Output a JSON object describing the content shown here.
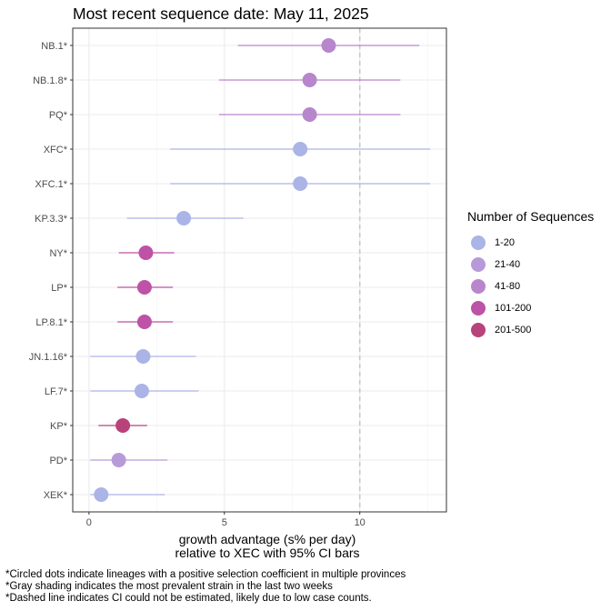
{
  "chart_data": {
    "type": "scatter",
    "title": "Most recent sequence date: May 11, 2025",
    "xlabel_line1": "growth advantage (s% per day)",
    "xlabel_line2": "relative to  XEC  with 95% CI bars",
    "xlim": [
      -0.6,
      13.2
    ],
    "xticks": [
      0,
      5,
      10
    ],
    "reference_line_x": 10,
    "grid": true,
    "legend": {
      "title": "Number of Sequences",
      "position": "right",
      "items": [
        {
          "label": "1-20",
          "color": "#aab4e6"
        },
        {
          "label": "21-40",
          "color": "#b79bd9"
        },
        {
          "label": "41-80",
          "color": "#b786cc"
        },
        {
          "label": "101-200",
          "color": "#bd52a6"
        },
        {
          "label": "201-500",
          "color": "#b8427a"
        }
      ]
    },
    "points": [
      {
        "lineage": "NB.1*",
        "value": 8.85,
        "ci_low": 5.5,
        "ci_high": 12.2,
        "group": "41-80"
      },
      {
        "lineage": "NB.1.8*",
        "value": 8.15,
        "ci_low": 4.8,
        "ci_high": 11.5,
        "group": "41-80"
      },
      {
        "lineage": "PQ*",
        "value": 8.15,
        "ci_low": 4.8,
        "ci_high": 11.5,
        "group": "41-80"
      },
      {
        "lineage": "XFC*",
        "value": 7.8,
        "ci_low": 3.0,
        "ci_high": 12.6,
        "group": "1-20"
      },
      {
        "lineage": "XFC.1*",
        "value": 7.8,
        "ci_low": 3.0,
        "ci_high": 12.6,
        "group": "1-20"
      },
      {
        "lineage": "KP.3.3*",
        "value": 3.5,
        "ci_low": 1.4,
        "ci_high": 5.7,
        "group": "1-20"
      },
      {
        "lineage": "NY*",
        "value": 2.1,
        "ci_low": 1.1,
        "ci_high": 3.15,
        "group": "101-200"
      },
      {
        "lineage": "LP*",
        "value": 2.05,
        "ci_low": 1.05,
        "ci_high": 3.1,
        "group": "101-200"
      },
      {
        "lineage": "LP.8.1*",
        "value": 2.05,
        "ci_low": 1.05,
        "ci_high": 3.1,
        "group": "101-200"
      },
      {
        "lineage": "JN.1.16*",
        "value": 2.0,
        "ci_low": 0.05,
        "ci_high": 3.95,
        "group": "1-20"
      },
      {
        "lineage": "LF.7*",
        "value": 1.95,
        "ci_low": 0.05,
        "ci_high": 4.05,
        "group": "1-20"
      },
      {
        "lineage": "KP*",
        "value": 1.25,
        "ci_low": 0.35,
        "ci_high": 2.15,
        "group": "201-500"
      },
      {
        "lineage": "PD*",
        "value": 1.1,
        "ci_low": 0.05,
        "ci_high": 2.9,
        "group": "21-40"
      },
      {
        "lineage": "XEK*",
        "value": 0.45,
        "ci_low": 0.05,
        "ci_high": 2.8,
        "group": "1-20"
      }
    ]
  },
  "footnotes": [
    "*Circled dots indicate lineages with a positive selection coefficient in multiple provinces",
    "*Gray shading indicates the most prevalent strain in the last two weeks",
    "*Dashed line indicates CI could not be estimated, likely due to low case counts."
  ]
}
